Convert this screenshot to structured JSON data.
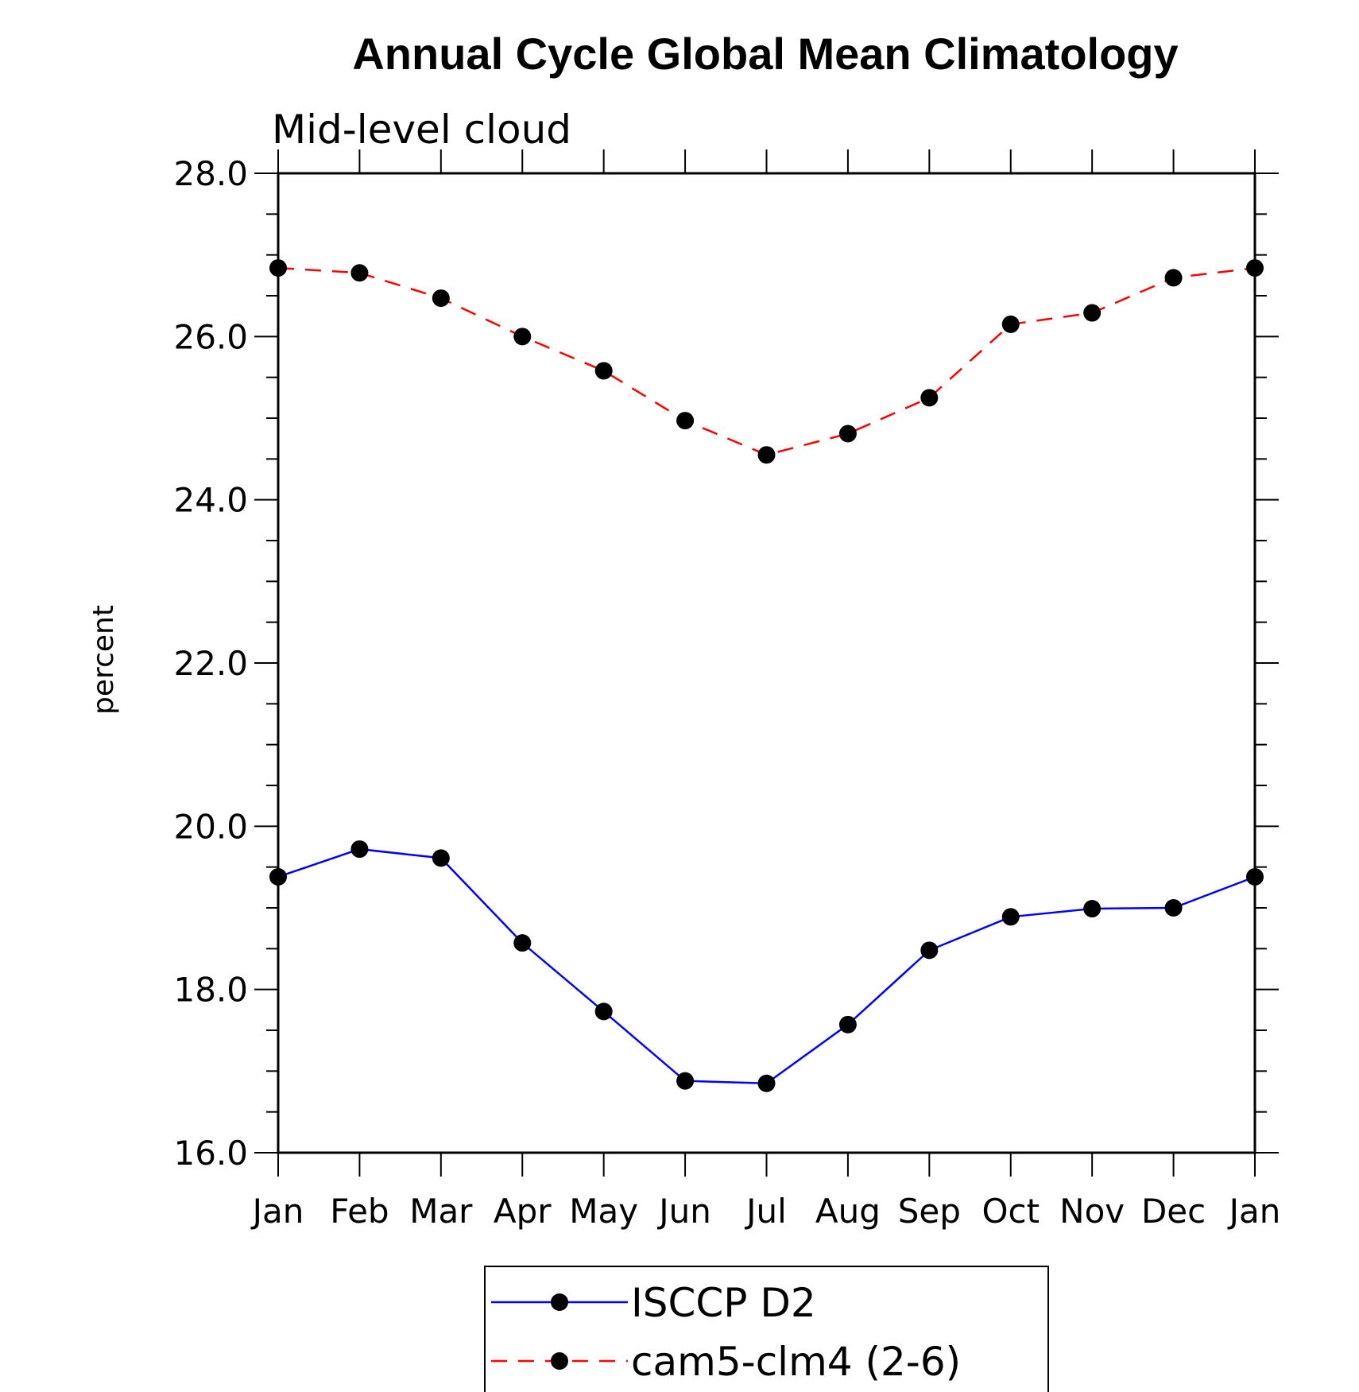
{
  "chart_data": {
    "type": "line",
    "title": "Annual Cycle Global Mean Climatology",
    "subtitle": "Mid-level cloud",
    "xlabel": "",
    "ylabel": "percent",
    "categories": [
      "Jan",
      "Feb",
      "Mar",
      "Apr",
      "May",
      "Jun",
      "Jul",
      "Aug",
      "Sep",
      "Oct",
      "Nov",
      "Dec",
      "Jan"
    ],
    "ylim": [
      16.0,
      28.0
    ],
    "yticks": [
      "16.0",
      "18.0",
      "20.0",
      "22.0",
      "24.0",
      "26.0",
      "28.0"
    ],
    "grid": false,
    "legend_position": "bottom-center",
    "series": [
      {
        "name": "ISCCP D2",
        "color": "#0000ff",
        "line_style": "solid",
        "marker": "filled-circle",
        "values": [
          19.38,
          19.72,
          19.61,
          18.57,
          17.73,
          16.88,
          16.85,
          17.57,
          18.48,
          18.89,
          18.99,
          19.0,
          19.38
        ]
      },
      {
        "name": "cam5-clm4 (2-6)",
        "color": "#ff0000",
        "line_style": "dashed",
        "marker": "filled-circle",
        "values": [
          26.84,
          26.78,
          26.47,
          26.0,
          25.58,
          24.97,
          24.55,
          24.81,
          25.25,
          26.15,
          26.29,
          26.72,
          26.84
        ]
      }
    ]
  }
}
